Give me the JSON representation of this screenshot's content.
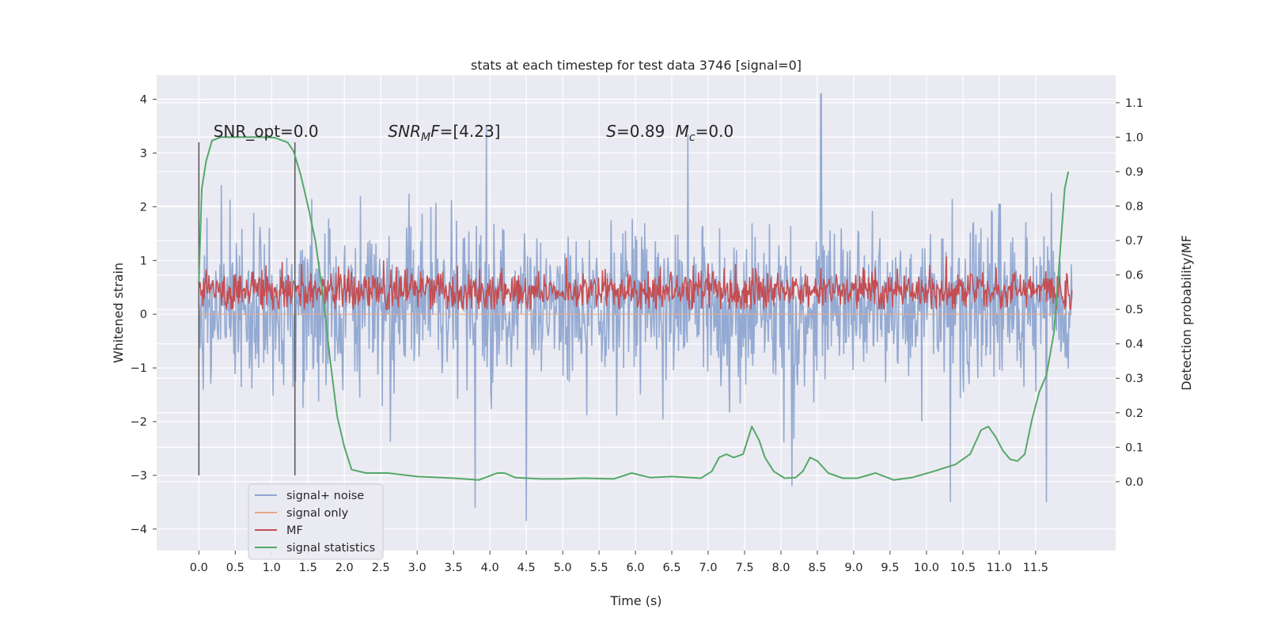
{
  "chart_data": {
    "type": "line",
    "title": "stats at each timestep for test data 3746 [signal=0]",
    "xlabel": "Time (s)",
    "ylabel_left": "Whitened strain",
    "ylabel_right": "Detection probability/MF",
    "xlim": [
      -0.58,
      12.6
    ],
    "ylim_left": [
      -4.4,
      4.45
    ],
    "ylim_right": [
      -0.2,
      1.18
    ],
    "x_ticks": [
      0.0,
      0.5,
      1.0,
      1.5,
      2.0,
      2.5,
      3.0,
      3.5,
      4.0,
      4.5,
      5.0,
      5.5,
      6.0,
      6.5,
      7.0,
      7.5,
      8.0,
      8.5,
      9.0,
      9.5,
      10.0,
      10.5,
      11.0,
      11.5
    ],
    "x_tick_labels": [
      "0.0",
      "0.5",
      "1.0",
      "1.5",
      "2.0",
      "2.5",
      "3.0",
      "3.5",
      "4.0",
      "4.5",
      "5.0",
      "5.5",
      "6.0",
      "6.5",
      "7.0",
      "7.5",
      "8.0",
      "8.5",
      "9.0",
      "9.5",
      "10.0",
      "10.5",
      "11.0",
      "11.5"
    ],
    "y_left_ticks": [
      -4,
      -3,
      -2,
      -1,
      0,
      1,
      2,
      3,
      4
    ],
    "y_left_tick_labels": [
      "−4",
      "−3",
      "−2",
      "−1",
      "0",
      "1",
      "2",
      "3",
      "4"
    ],
    "y_right_ticks": [
      0.0,
      0.1,
      0.2,
      0.3,
      0.4,
      0.5,
      0.6,
      0.7,
      0.8,
      0.9,
      1.0,
      1.1
    ],
    "y_right_tick_labels": [
      "0.0",
      "0.1",
      "0.2",
      "0.3",
      "0.4",
      "0.5",
      "0.6",
      "0.7",
      "0.8",
      "0.9",
      "1.0",
      "1.1"
    ],
    "grid": true,
    "series": [
      {
        "name": "signal+ noise",
        "axis": "left",
        "color": "#8fa6d0",
        "style": "dense noise time series spanning x 0.0–12.0, body roughly −1.2 to 1.5 with spikes to about −3.8 and +4.1",
        "notable_spikes": [
          {
            "x": 3.95,
            "y": 3.5
          },
          {
            "x": 6.72,
            "y": 3.35
          },
          {
            "x": 8.55,
            "y": 4.1
          },
          {
            "x": 10.33,
            "y": -3.5
          },
          {
            "x": 4.5,
            "y": -3.85
          },
          {
            "x": 3.8,
            "y": -3.6
          },
          {
            "x": 8.15,
            "y": -3.2
          },
          {
            "x": 11.65,
            "y": -3.5
          }
        ]
      },
      {
        "name": "signal only",
        "axis": "left",
        "color": "#e8a989",
        "style": "flat at 0 (no signal injected)"
      },
      {
        "name": "MF",
        "axis": "right",
        "color": "#c44e52",
        "style": "dense series spanning x 0.0–12.0, mostly between 0.50 and 0.62 with peaks near 0.65"
      },
      {
        "name": "signal statistics",
        "axis": "right",
        "color": "#55a868",
        "x": [
          0.0,
          0.04,
          0.1,
          0.18,
          0.3,
          0.6,
          0.9,
          1.05,
          1.15,
          1.22,
          1.3,
          1.4,
          1.5,
          1.6,
          1.7,
          1.8,
          1.9,
          2.0,
          2.1,
          2.3,
          2.6,
          3.0,
          3.5,
          3.85,
          4.1,
          4.2,
          4.35,
          4.7,
          5.0,
          5.3,
          5.7,
          5.95,
          6.2,
          6.5,
          6.9,
          7.05,
          7.15,
          7.25,
          7.35,
          7.48,
          7.6,
          7.7,
          7.78,
          7.9,
          8.05,
          8.2,
          8.3,
          8.4,
          8.5,
          8.65,
          8.85,
          9.05,
          9.3,
          9.55,
          9.8,
          10.1,
          10.4,
          10.6,
          10.75,
          10.85,
          10.95,
          11.05,
          11.15,
          11.25,
          11.35,
          11.45,
          11.55,
          11.65,
          11.75,
          11.82,
          11.9,
          11.95
        ],
        "y": [
          0.58,
          0.85,
          0.93,
          0.99,
          1.0,
          1.0,
          1.0,
          0.998,
          0.99,
          0.985,
          0.96,
          0.89,
          0.8,
          0.7,
          0.55,
          0.36,
          0.19,
          0.1,
          0.035,
          0.025,
          0.025,
          0.015,
          0.01,
          0.005,
          0.025,
          0.025,
          0.012,
          0.008,
          0.008,
          0.01,
          0.008,
          0.025,
          0.012,
          0.015,
          0.01,
          0.03,
          0.07,
          0.08,
          0.07,
          0.08,
          0.16,
          0.12,
          0.07,
          0.03,
          0.01,
          0.012,
          0.03,
          0.07,
          0.06,
          0.025,
          0.01,
          0.01,
          0.025,
          0.005,
          0.012,
          0.03,
          0.05,
          0.08,
          0.15,
          0.16,
          0.13,
          0.09,
          0.065,
          0.06,
          0.08,
          0.18,
          0.26,
          0.31,
          0.43,
          0.62,
          0.85,
          0.9
        ]
      }
    ],
    "vertical_lines": [
      {
        "x": 0.0,
        "y_from": -3.0,
        "y_to": 3.2,
        "color": "#555555"
      },
      {
        "x": 1.32,
        "y_from": -3.0,
        "y_to": 3.2,
        "color": "#555555"
      }
    ],
    "annotations": [
      {
        "id": "snr-opt",
        "text": "SNR_opt=0.0",
        "x": 0.2,
        "y": 3.3
      },
      {
        "id": "snr-mf",
        "text_italic": "SNR",
        "text_sub": "M",
        "text_italic2": "F",
        "text_rest": "=[4.23]",
        "x": 2.6,
        "y": 3.3
      },
      {
        "id": "s-value",
        "text_italic": "S",
        "text_rest": "=0.89",
        "x": 5.6,
        "y": 3.3
      },
      {
        "id": "mc-value",
        "text_italic": "M",
        "text_sub": "c",
        "text_rest": "=0.0",
        "x": 6.55,
        "y": 3.3
      }
    ],
    "legend": {
      "placement": "lower-left",
      "entries": [
        "signal+ noise",
        "signal only",
        "MF",
        "signal statistics"
      ]
    },
    "colors": {
      "figure_bg": "#ffffff",
      "axes_bg": "#eaeaf2",
      "grid": "#ffffff",
      "text": "#262626"
    }
  }
}
